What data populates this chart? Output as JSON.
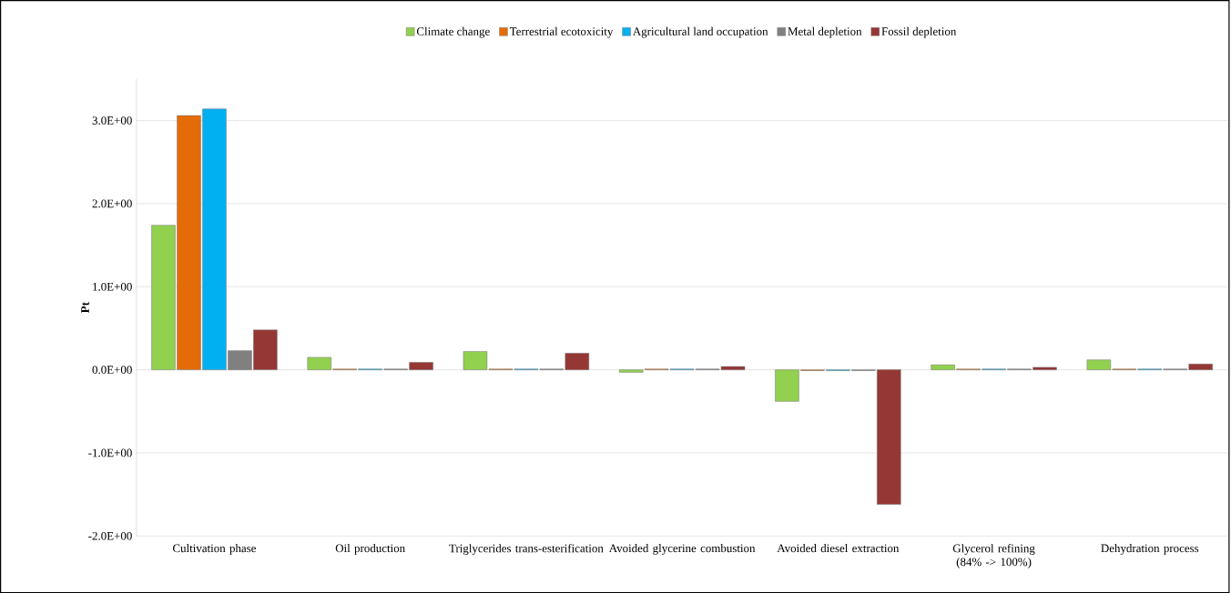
{
  "chart_data": {
    "type": "bar",
    "ylabel": "Pt",
    "categories": [
      "Cultivation phase",
      "Oil production",
      "Triglycerides trans-esterification",
      "Avoided glycerine combustion",
      "Avoided diesel extraction",
      "Glycerol refining (84% -> 100%)",
      "Dehydration process"
    ],
    "series": [
      {
        "name": "Climate change",
        "color": "#92d050",
        "values": [
          1.74,
          0.15,
          0.22,
          -0.03,
          -0.38,
          0.06,
          0.12
        ]
      },
      {
        "name": "Terrestrial ecotoxicity",
        "color": "#e36c09",
        "values": [
          3.06,
          0.01,
          0.01,
          0.01,
          -0.01,
          0.01,
          0.01
        ]
      },
      {
        "name": "Agricultural land occupation",
        "color": "#00b0f0",
        "values": [
          3.14,
          0.01,
          0.01,
          0.01,
          -0.01,
          0.01,
          0.01
        ]
      },
      {
        "name": "Metal depletion",
        "color": "#808080",
        "values": [
          0.23,
          0.01,
          0.01,
          0.01,
          -0.01,
          0.01,
          0.01
        ]
      },
      {
        "name": "Fossil depletion",
        "color": "#953735",
        "values": [
          0.48,
          0.09,
          0.2,
          0.04,
          -1.62,
          0.03,
          0.07
        ]
      }
    ],
    "ylim": [
      -2,
      3.5
    ],
    "yticks": [
      {
        "value": -2,
        "label": "-2.0E+00"
      },
      {
        "value": -1,
        "label": "-1.0E+00"
      },
      {
        "value": 0,
        "label": "0.0E+00"
      },
      {
        "value": 1,
        "label": "1.0E+00"
      },
      {
        "value": 2,
        "label": "2.0E+00"
      },
      {
        "value": 3,
        "label": "3.0E+00"
      }
    ],
    "grid": "y",
    "legend": "top"
  }
}
